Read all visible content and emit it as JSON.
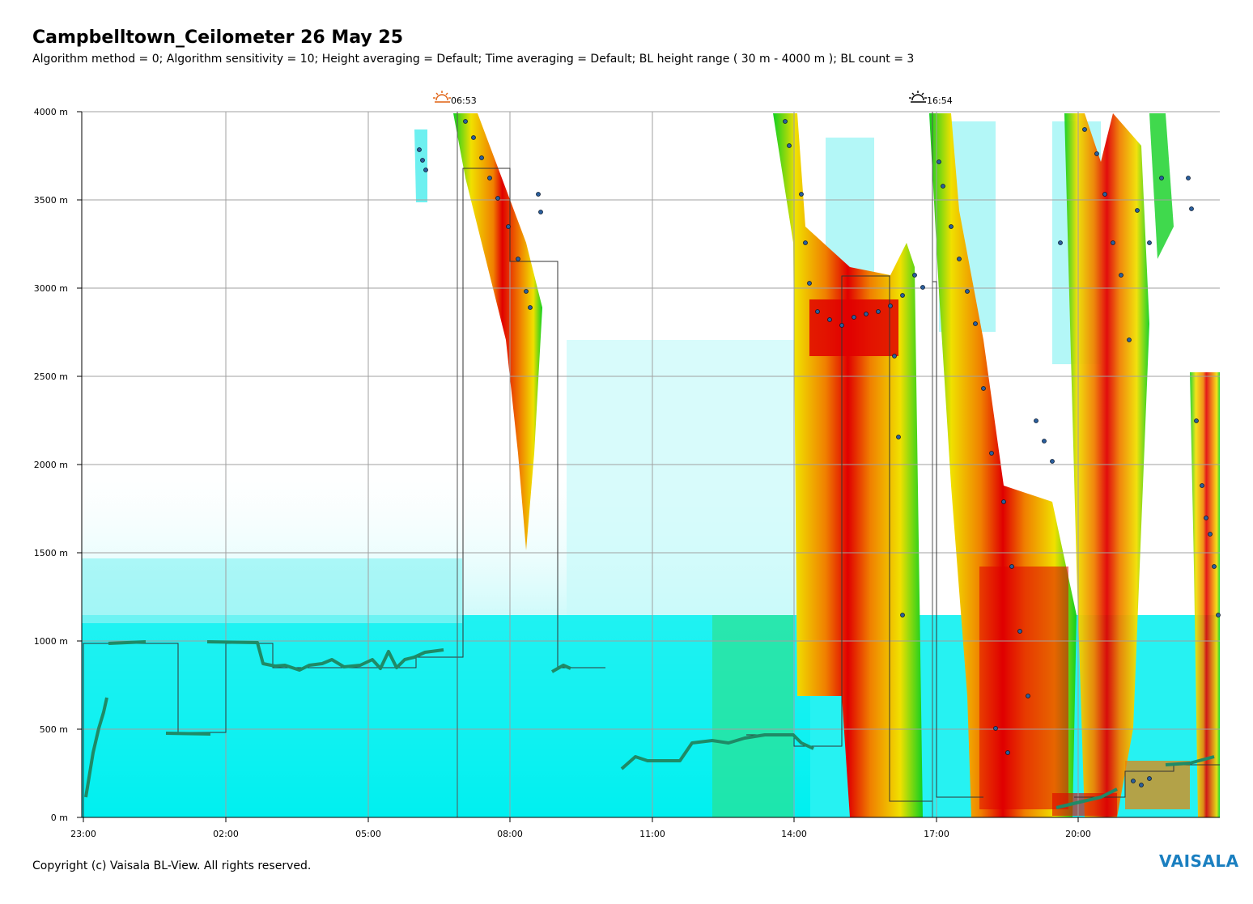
{
  "header": {
    "title": "Campbelltown_Ceilometer 26 May 25",
    "subtitle": "Algorithm method = 0; Algorithm sensitivity = 10; Height averaging = Default; Time averaging = Default; BL height range ( 30 m - 4000 m ); BL count = 3"
  },
  "footer": {
    "copyright": "Copyright (c) Vaisala BL-View. All rights reserved.",
    "logo_text": "VAISALA"
  },
  "colors": {
    "grid": "#a0a0a0",
    "low_backscatter": "#00f0f0",
    "green": "#10d020",
    "yellow": "#f0e000",
    "orange": "#f08000",
    "red": "#e00000",
    "bl_line": "#228866",
    "cloud_point": "#2a5f9e",
    "sunrise_icon": "#e06010",
    "sunset_icon": "#000000",
    "logo": "#1a7fc0"
  },
  "chart_data": {
    "type": "heatmap",
    "y_unit": "m",
    "ylim": [
      0,
      4000
    ],
    "x_start": "23:00",
    "x_end": "23:59",
    "y_ticks": [
      "0 m",
      "500 m",
      "1000 m",
      "1500 m",
      "2000 m",
      "2500 m",
      "3000 m",
      "3500 m",
      "4000 m"
    ],
    "x_ticks": [
      "23:00",
      "02:00",
      "05:00",
      "08:00",
      "11:00",
      "14:00",
      "17:00",
      "20:00"
    ],
    "sun_events": [
      {
        "type": "sunrise",
        "time": "06:53",
        "icon": "sunrise-icon"
      },
      {
        "type": "sunset",
        "time": "16:54",
        "icon": "sunset-icon"
      }
    ],
    "bl_height_step": [
      [
        "23:00",
        980
      ],
      [
        "01:00",
        980
      ],
      [
        "01:00",
        480
      ],
      [
        "02:00",
        480
      ],
      [
        "02:00",
        990
      ],
      [
        "03:00",
        990
      ],
      [
        "03:00",
        840
      ],
      [
        "07:00",
        840
      ],
      [
        "07:00",
        900
      ],
      [
        "06:50",
        900
      ],
      [
        "06:50",
        3680
      ],
      [
        "07:30",
        3680
      ],
      [
        "07:30",
        3150
      ],
      [
        "08:40",
        3150
      ],
      [
        "08:40",
        840
      ],
      [
        "09:50",
        840
      ]
    ],
    "bl_height_step_afternoon": [
      [
        "13:00",
        460
      ],
      [
        "14:00",
        460
      ],
      [
        "14:00",
        390
      ],
      [
        "15:00",
        390
      ],
      [
        "15:00",
        3060
      ],
      [
        "16:00",
        3060
      ],
      [
        "16:00",
        90
      ],
      [
        "16:55",
        90
      ],
      [
        "16:55",
        3040
      ],
      [
        "17:00",
        3040
      ],
      [
        "17:00",
        110
      ],
      [
        "18:00",
        110
      ]
    ],
    "bl_height_step_evening": [
      [
        "20:00",
        130
      ],
      [
        "21:00",
        130
      ],
      [
        "21:00",
        260
      ],
      [
        "22:00",
        260
      ],
      [
        "22:00",
        300
      ],
      [
        "23:59",
        300
      ]
    ],
    "aerosol_layer_series": [
      {
        "name": "",
        "x": [
          "23:00",
          "23:30",
          "00:30",
          "01:00",
          "02:00",
          "02:40",
          "03:30",
          "04:30",
          "05:30",
          "06:20",
          "08:45",
          "09:40",
          "10:20",
          "11:30",
          "12:30",
          "13:30",
          "14:00"
        ],
        "y": [
          130,
          560,
          990,
          470,
          990,
          840,
          830,
          850,
          880,
          940,
          830,
          850,
          280,
          330,
          420,
          470,
          440
        ]
      }
    ],
    "intense_backscatter_regions": [
      {
        "x_range": [
          "07:00",
          "08:30"
        ],
        "y_range": [
          2800,
          4000
        ]
      },
      {
        "x_range": [
          "14:00",
          "16:40"
        ],
        "y_range": [
          0,
          3000
        ]
      },
      {
        "x_range": [
          "17:00",
          "19:50"
        ],
        "y_range": [
          0,
          4000
        ]
      },
      {
        "x_range": [
          "20:50",
          "22:10"
        ],
        "y_range": [
          1500,
          4000
        ]
      },
      {
        "x_range": [
          "23:40",
          "23:59"
        ],
        "y_range": [
          700,
          2500
        ]
      }
    ]
  }
}
